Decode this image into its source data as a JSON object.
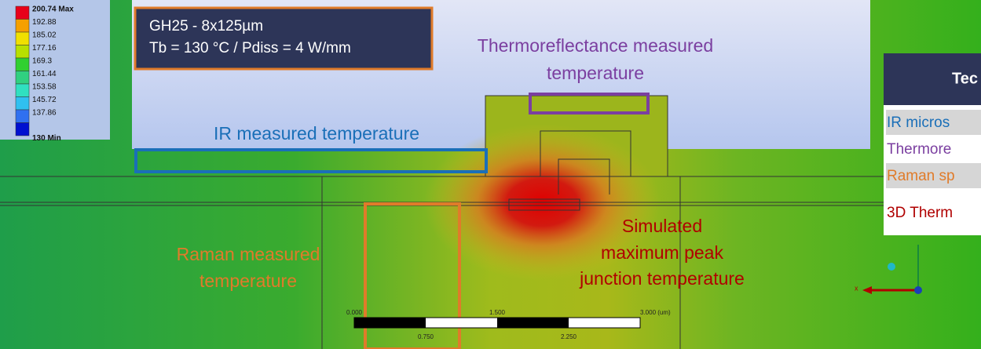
{
  "legend": {
    "labels": [
      "200.74 Max",
      "192.88",
      "185.02",
      "177.16",
      "169.3",
      "161.44",
      "153.58",
      "145.72",
      "137.86",
      "130 Min"
    ]
  },
  "info_box": {
    "line1": "GH25 - 8x125µm",
    "line2": "Tb = 130 °C / Pdiss = 4 W/mm"
  },
  "annotations": {
    "thermoreflectance": [
      "Thermoreflectance measured",
      "temperature"
    ],
    "ir": "IR measured temperature",
    "raman": [
      "Raman measured",
      "temperature"
    ],
    "simulated": [
      "Simulated",
      "maximum peak",
      "junction temperature"
    ]
  },
  "table": {
    "header": "Tec",
    "rows": [
      "IR micros",
      "Thermore",
      "Raman sp",
      "3D Therm"
    ]
  },
  "scale_bar": {
    "top": [
      "0.000",
      "1.500",
      "3.000 (um)"
    ],
    "bottom": [
      "0.750",
      "2.250"
    ]
  },
  "triad": {
    "x": "x"
  }
}
